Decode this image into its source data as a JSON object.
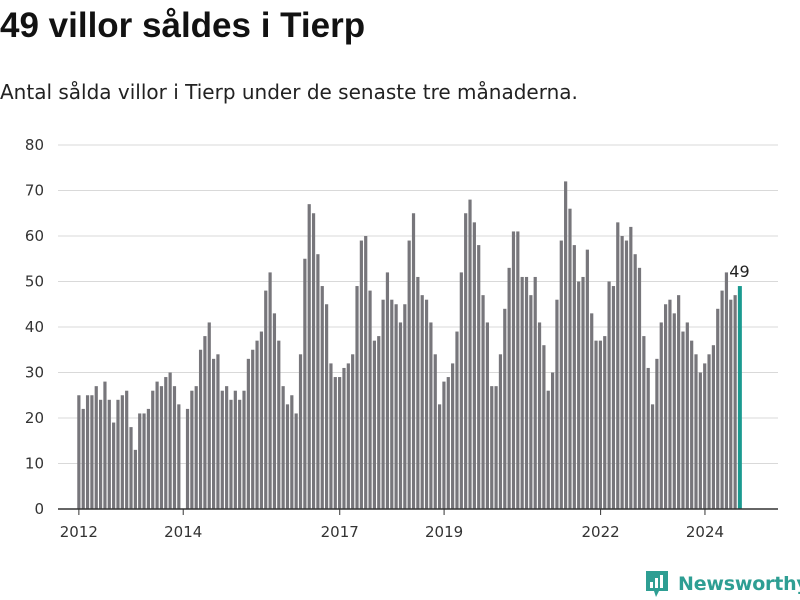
{
  "header": {
    "title": "49 villor såldes i Tierp",
    "subtitle": "Antal sålda villor i Tierp under de senaste tre månaderna."
  },
  "brand": {
    "name": "Newsworthy",
    "logo_icon": "newsworthy-logo-icon"
  },
  "colors": {
    "bar": "#77767b",
    "highlight": "#1a9a90",
    "grid": "#d9d9d9",
    "axis": "#333333",
    "brand": "#2e9e93"
  },
  "chart_data": {
    "type": "bar",
    "title": "49 villor såldes i Tierp",
    "subtitle": "Antal sålda villor i Tierp under de senaste tre månaderna.",
    "xlabel": "",
    "ylabel": "",
    "ylim": [
      0,
      80
    ],
    "yticks": [
      0,
      10,
      20,
      30,
      40,
      50,
      60,
      70,
      80
    ],
    "x_start": 2012.0,
    "x_step": 0.0833,
    "xlim": [
      2011.6,
      2025.4
    ],
    "xticks": [
      {
        "label": "2012",
        "value": 2012
      },
      {
        "label": "2014",
        "value": 2014
      },
      {
        "label": "2017",
        "value": 2017
      },
      {
        "label": "2019",
        "value": 2019
      },
      {
        "label": "2022",
        "value": 2022
      },
      {
        "label": "2024",
        "value": 2024
      }
    ],
    "grid": true,
    "highlight_label": "49",
    "series": [
      {
        "name": "Antal sålda villor",
        "values": [
          25,
          22,
          25,
          25,
          27,
          24,
          28,
          24,
          19,
          24,
          25,
          26,
          18,
          13,
          21,
          21,
          22,
          26,
          28,
          27,
          29,
          30,
          27,
          23,
          null,
          22,
          26,
          27,
          35,
          38,
          41,
          33,
          34,
          26,
          27,
          24,
          26,
          24,
          26,
          33,
          35,
          37,
          39,
          48,
          52,
          43,
          37,
          27,
          23,
          25,
          21,
          34,
          55,
          67,
          65,
          56,
          49,
          45,
          32,
          29,
          29,
          31,
          32,
          34,
          49,
          59,
          60,
          48,
          37,
          38,
          46,
          52,
          46,
          45,
          41,
          45,
          59,
          65,
          51,
          47,
          46,
          41,
          34,
          23,
          28,
          29,
          32,
          39,
          52,
          65,
          68,
          63,
          58,
          47,
          41,
          27,
          27,
          34,
          44,
          53,
          61,
          61,
          51,
          51,
          47,
          51,
          41,
          36,
          26,
          30,
          46,
          59,
          72,
          66,
          58,
          50,
          51,
          57,
          43,
          37,
          37,
          38,
          50,
          49,
          63,
          60,
          59,
          62,
          56,
          53,
          38,
          31,
          23,
          33,
          41,
          45,
          46,
          43,
          47,
          39,
          41,
          37,
          34,
          30,
          32,
          34,
          36,
          44,
          48,
          52,
          46,
          47,
          49
        ]
      }
    ]
  }
}
